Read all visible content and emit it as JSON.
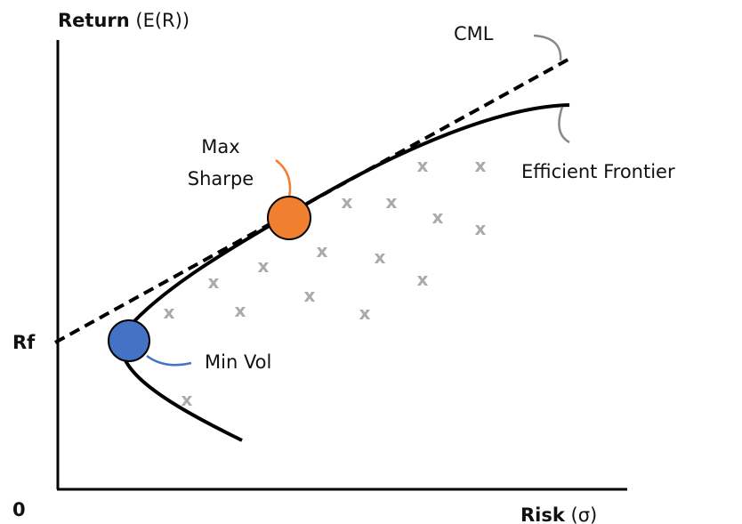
{
  "y_axis_label": {
    "bold": "Return",
    "rest": "(E(R))"
  },
  "x_axis_label": {
    "bold": "Risk",
    "rest": "(σ)"
  },
  "origin_label": "0",
  "rf_label": "Rf",
  "cml_label": "CML",
  "frontier_label": "Efficient Frontier",
  "max_sharpe_label": [
    "Max",
    "Sharpe"
  ],
  "min_vol_label": "Min Vol",
  "portfolio_marker": "x"
}
